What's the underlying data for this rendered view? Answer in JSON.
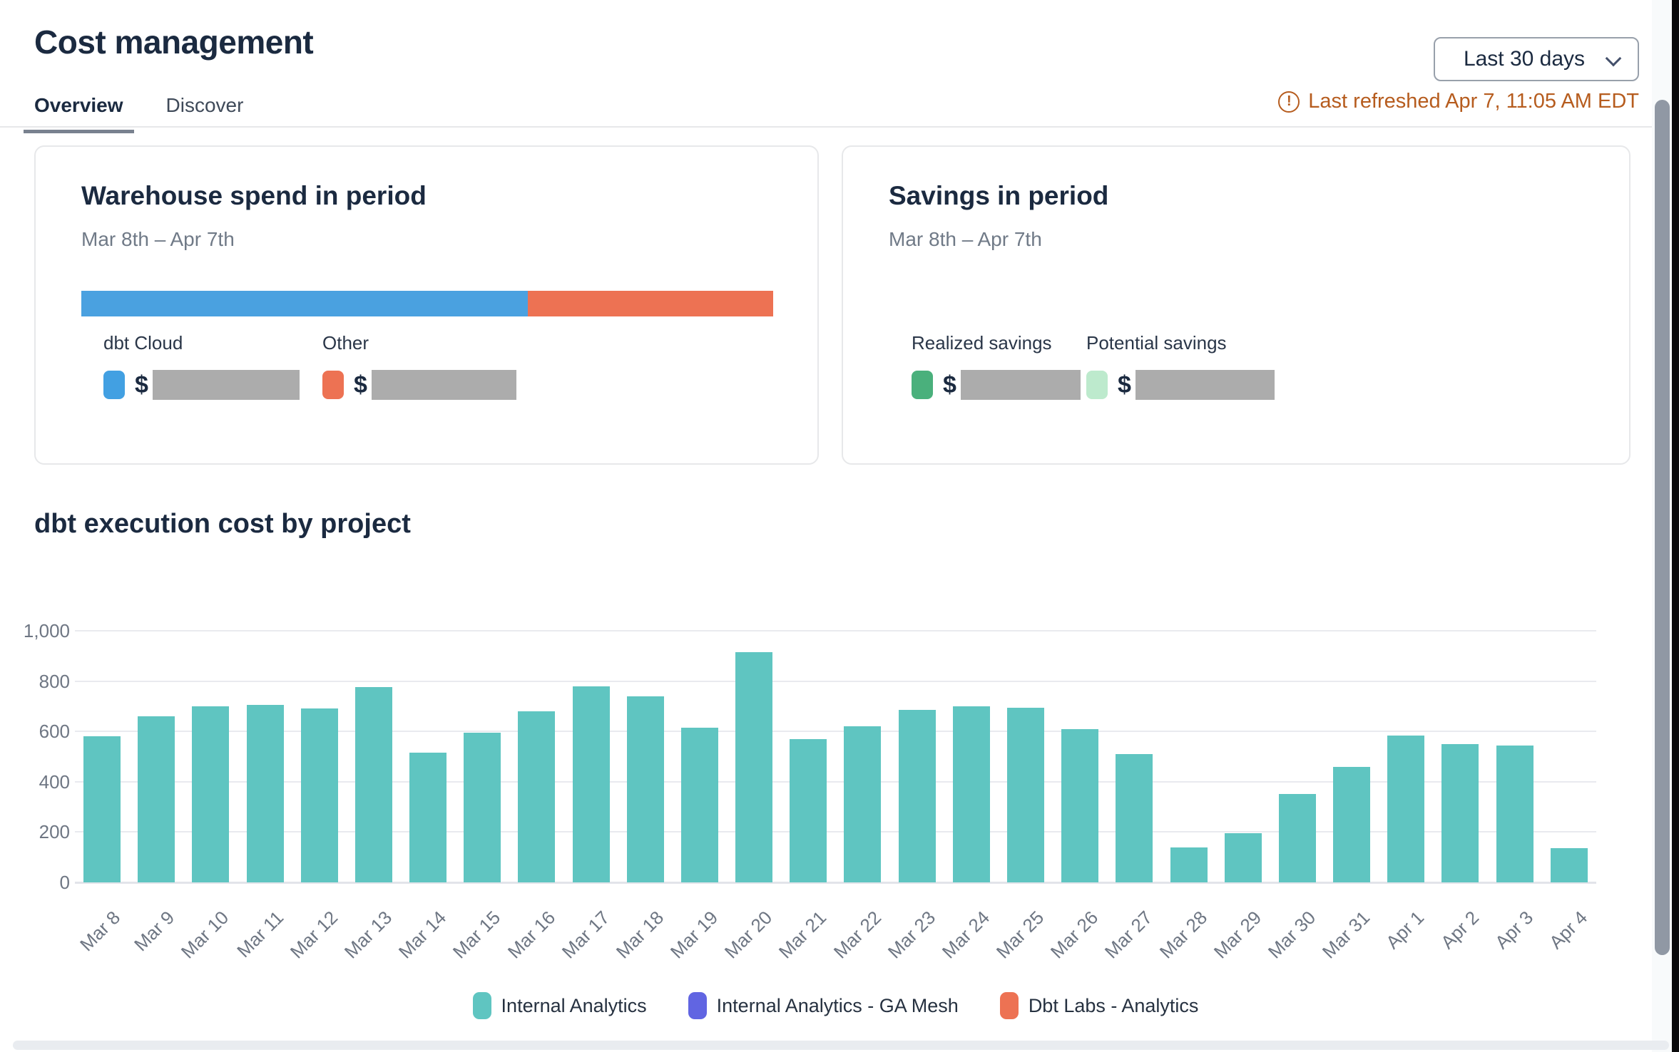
{
  "header": {
    "title": "Cost management",
    "period_selector": "Last 30 days",
    "last_refreshed": "Last refreshed Apr 7, 11:05 AM EDT"
  },
  "tabs": [
    {
      "label": "Overview",
      "active": true
    },
    {
      "label": "Discover",
      "active": false
    }
  ],
  "cards": {
    "warehouse": {
      "title": "Warehouse spend in period",
      "date_range": "Mar 8th – Apr 7th",
      "stacked_bar": [
        {
          "name": "dbt Cloud",
          "color": "#4aa1e0",
          "fraction": 0.645
        },
        {
          "name": "Other",
          "color": "#ed7253",
          "fraction": 0.355
        }
      ],
      "legend": [
        {
          "label": "dbt Cloud",
          "color": "#42a0e2",
          "value_prefix": "$",
          "value_redacted": true
        },
        {
          "label": "Other",
          "color": "#ed7253",
          "value_prefix": "$",
          "value_redacted": true
        }
      ]
    },
    "savings": {
      "title": "Savings in period",
      "date_range": "Mar 8th – Apr 7th",
      "legend": [
        {
          "label": "Realized savings",
          "color": "#4ab07c",
          "value_prefix": "$",
          "value_redacted": true
        },
        {
          "label": "Potential savings",
          "color": "#bdeacd",
          "value_prefix": "$",
          "value_redacted": true
        }
      ]
    }
  },
  "chart_section": {
    "title": "dbt execution cost by project"
  },
  "chart_data": {
    "type": "bar",
    "title": "dbt execution cost by project",
    "categories": [
      "Mar 8",
      "Mar 9",
      "Mar 10",
      "Mar 11",
      "Mar 12",
      "Mar 13",
      "Mar 14",
      "Mar 15",
      "Mar 16",
      "Mar 17",
      "Mar 18",
      "Mar 19",
      "Mar 20",
      "Mar 21",
      "Mar 22",
      "Mar 23",
      "Mar 24",
      "Mar 25",
      "Mar 26",
      "Mar 27",
      "Mar 28",
      "Mar 29",
      "Mar 30",
      "Mar 31",
      "Apr 1",
      "Apr 2",
      "Apr 3",
      "Apr 4"
    ],
    "series": [
      {
        "name": "Internal Analytics",
        "color": "#5fc5c1",
        "values": [
          580,
          660,
          700,
          705,
          690,
          775,
          515,
          595,
          680,
          780,
          740,
          615,
          915,
          570,
          620,
          685,
          700,
          695,
          610,
          510,
          140,
          195,
          350,
          460,
          585,
          550,
          545,
          135
        ]
      }
    ],
    "legend": [
      {
        "name": "Internal Analytics",
        "color": "#5fc5c1"
      },
      {
        "name": "Internal Analytics - GA Mesh",
        "color": "#6165e2"
      },
      {
        "name": "Dbt Labs - Analytics",
        "color": "#ed7253"
      }
    ],
    "xlabel": "",
    "ylabel": "",
    "ylim": [
      0,
      1000
    ],
    "yticks": [
      0,
      200,
      400,
      600,
      800,
      1000
    ],
    "grid": true,
    "legend_position": "bottom"
  }
}
